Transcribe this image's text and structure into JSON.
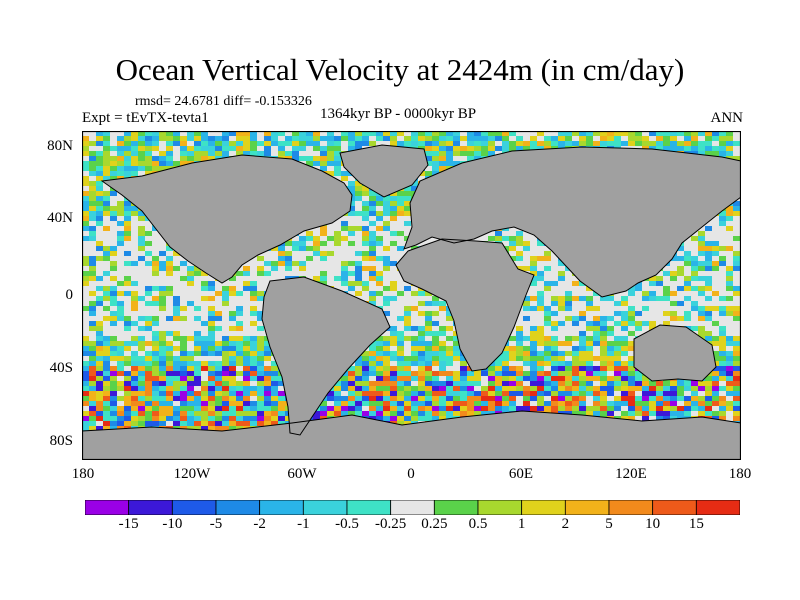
{
  "title": "Ocean Vertical Velocity at 2424m (in cm/day)",
  "stats": "rmsd= 24.6781 diff= -0.153326",
  "experiment": "Expt = tEvTX-tevta1",
  "period": "1364kyr BP - 0000kyr BP",
  "season": "ANN",
  "lat_labels": [
    "80N",
    "40N",
    "0",
    "40S",
    "80S"
  ],
  "lon_labels": [
    "180",
    "120W",
    "60W",
    "0",
    "60E",
    "120E",
    "180"
  ],
  "legend": {
    "labels": [
      "-15",
      "-10",
      "-5",
      "-2",
      "-1",
      "-0.5",
      "-0.25",
      "0.25",
      "0.5",
      "1",
      "2",
      "5",
      "10",
      "15"
    ],
    "colors": [
      "#9a00e6",
      "#3c18d8",
      "#1e5ae8",
      "#1e8ae6",
      "#2ab4e8",
      "#3ad2dc",
      "#3ee2c6",
      "#e6e6e6",
      "#5ad24a",
      "#a8d82e",
      "#e0d21c",
      "#f2b21a",
      "#f28a1c",
      "#ee5a1a",
      "#e62c14"
    ]
  },
  "map_colors": {
    "land": "#a0a0a0",
    "coast": "#000000"
  }
}
